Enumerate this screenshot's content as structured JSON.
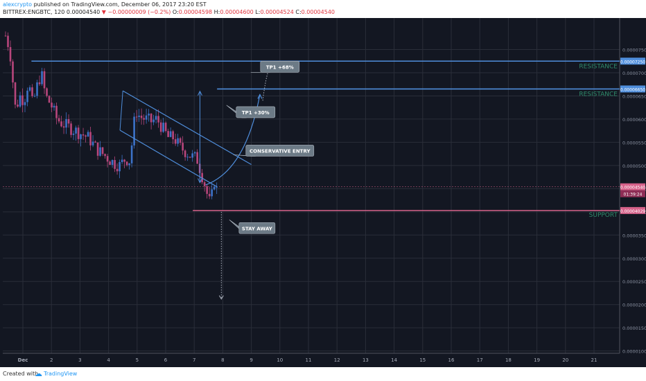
{
  "header": {
    "author": "alexcrypto",
    "published": " published on TradingView.com, December 06, 2017 23:20 EST",
    "symbol": "BITTREX:ENGBTC, 120",
    "last": " 0.00004540 ",
    "change": "▼ −0.00000009 (−0.2%)",
    "o_label": " O:",
    "o_value": "0.00004598",
    "h_label": " H:",
    "h_value": "0.00004600",
    "l_label": " L:",
    "l_value": "0.00004524",
    "c_label": " C:",
    "c_value": "0.00004540"
  },
  "footer": {
    "created_with": "Created with",
    "brand": "TradingView"
  },
  "colors": {
    "background": "#131722",
    "grid": "#2a2e39",
    "up": "#3c72c8",
    "down": "#b8467c",
    "drawing": "#4f8edc",
    "support": "#d6628a",
    "label_fill": "#6c7a86",
    "zone_text": "#2e8b6a"
  },
  "chart_data": {
    "type": "candlestick",
    "symbol": "BITTREX:ENGBTC",
    "interval": "120",
    "ylim": [
      9.5e-06,
      8.18e-05
    ],
    "y_ticks": [
      "0.00007500",
      "0.00007000",
      "0.00006500",
      "0.00006000",
      "0.00005500",
      "0.00005000",
      "0.00004500",
      "0.00004000",
      "0.00003500",
      "0.00003000",
      "0.00002500",
      "0.00002000",
      "0.00001500",
      "0.00001000"
    ],
    "x_ticks": [
      {
        "label": "Dec",
        "day": 1
      },
      {
        "label": "2",
        "day": 2
      },
      {
        "label": "3",
        "day": 3
      },
      {
        "label": "4",
        "day": 4
      },
      {
        "label": "5",
        "day": 5
      },
      {
        "label": "6",
        "day": 6
      },
      {
        "label": "7",
        "day": 7
      },
      {
        "label": "8",
        "day": 8
      },
      {
        "label": "9",
        "day": 9
      },
      {
        "label": "10",
        "day": 10
      },
      {
        "label": "11",
        "day": 11
      },
      {
        "label": "12",
        "day": 12
      },
      {
        "label": "13",
        "day": 13
      },
      {
        "label": "14",
        "day": 14
      },
      {
        "label": "15",
        "day": 15
      },
      {
        "label": "16",
        "day": 16
      },
      {
        "label": "17",
        "day": 17
      },
      {
        "label": "18",
        "day": 18
      },
      {
        "label": "19",
        "day": 19
      },
      {
        "label": "20",
        "day": 20
      },
      {
        "label": "21",
        "day": 21
      }
    ],
    "grid": true,
    "price_levels": [
      {
        "name": "resistance_2",
        "value": "0.00007250",
        "label": "RESISTANCE",
        "color": "#4f8edc"
      },
      {
        "name": "resistance_1",
        "value": "0.00006650",
        "label": "RESISTANCE",
        "color": "#4f8edc"
      },
      {
        "name": "current",
        "value": "0.00004540",
        "label": "",
        "color": "#d6628a"
      },
      {
        "name": "support",
        "value": "0.00004029",
        "label": "SUPPORT",
        "color": "#d6628a"
      }
    ],
    "current_price_label": "0.00004540",
    "countdown_label": "01:39:24",
    "annotations": [
      {
        "text": "TP1 +68%",
        "day": 10.0,
        "price": 7.13e-05
      },
      {
        "text": "TP1 +30%",
        "day": 9.15,
        "price": 6.15e-05
      },
      {
        "text": "CONSERVATIVE ENTRY",
        "day": 10.0,
        "price": 5.32e-05
      },
      {
        "text": "STAY AWAY",
        "day": 9.2,
        "price": 3.65e-05
      }
    ]
  }
}
